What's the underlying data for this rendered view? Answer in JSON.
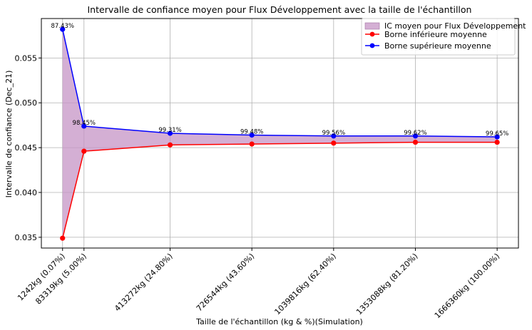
{
  "chart_data": {
    "type": "line",
    "title": "Intervalle de confiance moyen pour Flux Développement avec la taille de l'échantillon",
    "xlabel": "Taille de l'échantillon (kg & %)(Simulation)",
    "ylabel": "Intervalle de confiance (Dec_21)",
    "x": [
      1242,
      83319,
      413272,
      726544,
      1039816,
      1353088,
      1666360
    ],
    "categories": [
      "1242kg (0.07%)",
      "83319kg (5.00%)",
      "413272kg (24.80%)",
      "726544kg (43.60%)",
      "1039816kg (62.40%)",
      "1353088kg (81.20%)",
      "1666360kg (100.00%)"
    ],
    "xlim": [
      -80000,
      1748000
    ],
    "ylim": [
      0.0338,
      0.0594
    ],
    "yticks": [
      0.035,
      0.04,
      0.045,
      0.05,
      0.055
    ],
    "ytick_labels": [
      "0.035",
      "0.040",
      "0.045",
      "0.050",
      "0.055"
    ],
    "grid": true,
    "legend_position": "top-right",
    "series": [
      {
        "name": "Borne inférieure moyenne",
        "color": "#ff0000",
        "values": [
          0.0349,
          0.0446,
          0.0453,
          0.0454,
          0.0455,
          0.0456,
          0.0456
        ]
      },
      {
        "name": "Borne supérieure moyenne",
        "color": "#0000ff",
        "values": [
          0.0582,
          0.0474,
          0.0466,
          0.0464,
          0.0463,
          0.0463,
          0.0462
        ]
      }
    ],
    "fill": {
      "name": "IC moyen pour Flux Développement",
      "color": "#c594c5"
    },
    "annotations": [
      "87.43%",
      "98.45%",
      "99.31%",
      "99.48%",
      "99.56%",
      "99.62%",
      "99.65%"
    ]
  }
}
